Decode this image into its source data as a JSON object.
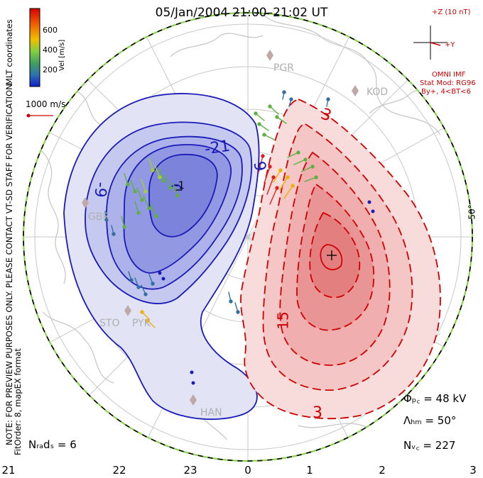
{
  "title": "05/Jan/2004 21:00–21:02 UT",
  "colorbar": {
    "label": "Vel [m/s]",
    "ticks": [
      "600",
      "400",
      "200"
    ],
    "colors": [
      "#d40000",
      "#f06000",
      "#f0b000",
      "#c8e020",
      "#60c040",
      "#409080",
      "#3060c0",
      "#1020d0"
    ]
  },
  "coordinates_label": "MLT coordinates",
  "scale_label": "1000 m/s",
  "imf": {
    "z_label": "+Z (10 nT)",
    "y_label": "+Y",
    "source": "OMNI IMF",
    "model": "Stat Mod: RG96",
    "condition": "By+, 4<BT<6"
  },
  "note": "NOTE: FOR PREVIEW PURPOSES ONLY. PLEASE CONTACT VT-SD STAFF FOR VERIFICATION.",
  "fit_order": "FitOrder: 8, mapEX format",
  "stations": [
    "PGR",
    "KOD",
    "GBR",
    "STO",
    "PYK",
    "HAN"
  ],
  "contour_labels": [
    "-21",
    "-9",
    "-1",
    "9",
    "3",
    "15",
    "3"
  ],
  "latitude_label": "50°",
  "stats": {
    "n_rads": "Nᵣₐdₛ = 6",
    "phi_pc": "Φₚ꜀ = 48 kV",
    "lambda_hm": "Λₕₘ = 50°",
    "n_vc": "Nᵥ꜀ = 227"
  },
  "mlt_ticks": [
    "21",
    "22",
    "23",
    "0",
    "1",
    "2",
    "3"
  ]
}
